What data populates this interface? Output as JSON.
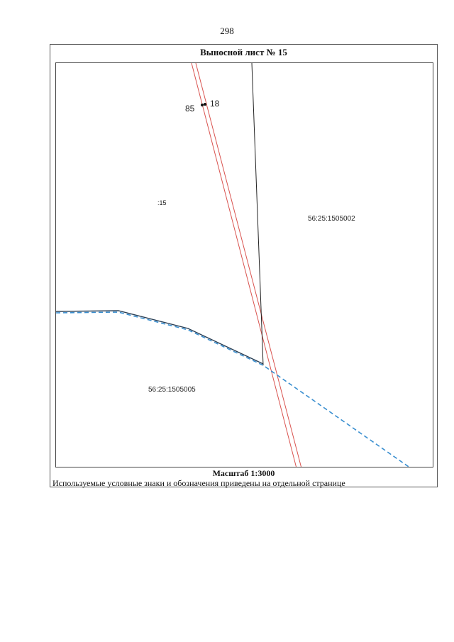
{
  "page_number": "298",
  "sheet": {
    "title": "Выносной лист № 15",
    "scale": "Масштаб 1:3000",
    "legend_note": "Используемые условные знаки и обозначения приведены на отдельной странице"
  },
  "map": {
    "point_labels": [
      "85",
      "18"
    ],
    "parcels": [
      ":15",
      "56:25:1505002",
      "56:25:1505005"
    ],
    "colors": {
      "boundary_blue": "#3a8fd0",
      "boundary_black": "#222222",
      "line_red": "#d9534f"
    }
  }
}
